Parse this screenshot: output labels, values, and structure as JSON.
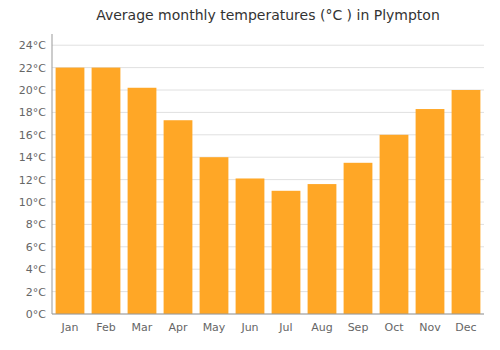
{
  "chart_data": {
    "type": "bar",
    "title": "Average monthly temperatures (°C ) in Plympton",
    "categories": [
      "Jan",
      "Feb",
      "Mar",
      "Apr",
      "May",
      "Jun",
      "Jul",
      "Aug",
      "Sep",
      "Oct",
      "Nov",
      "Dec"
    ],
    "values": [
      22,
      22,
      20.2,
      17.3,
      14.0,
      12.1,
      11.0,
      11.6,
      13.5,
      16.0,
      18.3,
      20.0
    ],
    "color": "#FFA726",
    "ylim": [
      0,
      25
    ],
    "yticks": [
      {
        "value": 0,
        "label": "0°C"
      },
      {
        "value": 2,
        "label": "2°C"
      },
      {
        "value": 4,
        "label": "4°C"
      },
      {
        "value": 6,
        "label": "6°C"
      },
      {
        "value": 8,
        "label": "8°C"
      },
      {
        "value": 10,
        "label": "10°C"
      },
      {
        "value": 12,
        "label": "12°C"
      },
      {
        "value": 14,
        "label": "14°C"
      },
      {
        "value": 16,
        "label": "16°C"
      },
      {
        "value": 18,
        "label": "18°C"
      },
      {
        "value": 20,
        "label": "20°C"
      },
      {
        "value": 22,
        "label": "22°C"
      },
      {
        "value": 24,
        "label": "24°C"
      }
    ],
    "grid": true
  }
}
